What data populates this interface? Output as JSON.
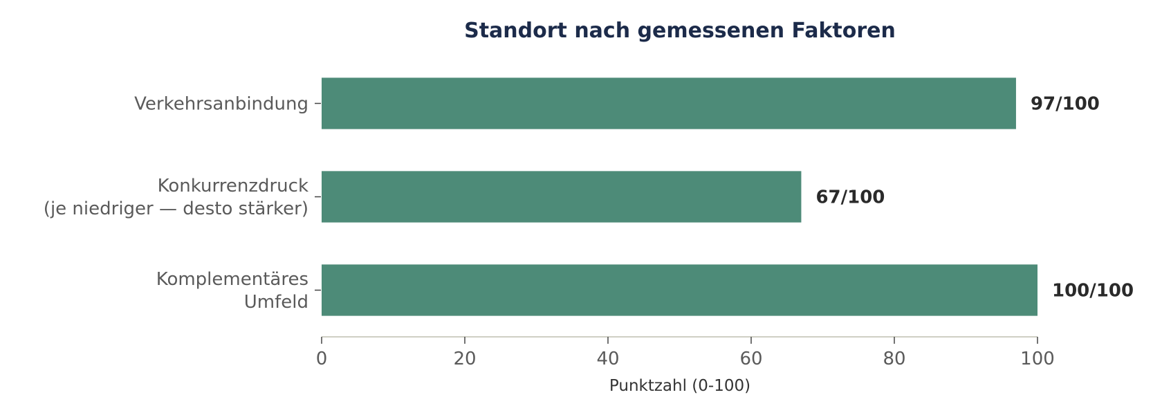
{
  "colors": {
    "bar": "#4d8b78",
    "title": "#1c2b4a",
    "axis": "#cfcfc4",
    "tick": "#444444"
  },
  "chart_data": {
    "type": "bar",
    "orientation": "horizontal",
    "title": "Standort nach gemessenen Faktoren",
    "xlabel": "Punktzahl (0-100)",
    "ylabel": "",
    "xlim": [
      0,
      100
    ],
    "xticks": [
      0,
      20,
      40,
      60,
      80,
      100
    ],
    "grid": false,
    "categories": [
      [
        "Verkehrsanbindung"
      ],
      [
        "Konkurrenzdruck",
        "(je niedriger — desto stärker)"
      ],
      [
        "Komplementäres",
        "Umfeld"
      ]
    ],
    "values": [
      97,
      67,
      100
    ],
    "value_labels": [
      "97/100",
      "67/100",
      "100/100"
    ]
  }
}
